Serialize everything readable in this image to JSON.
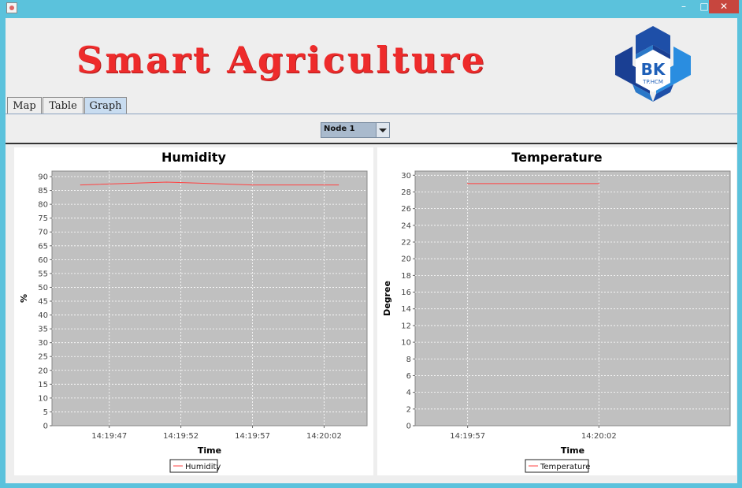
{
  "window": {
    "minimize_glyph": "–",
    "maximize_glyph": "□",
    "close_glyph": "✕"
  },
  "header": {
    "title": "Smart Agriculture",
    "logo_text": "BK",
    "logo_subtext": "TP.HCM"
  },
  "tabs": [
    {
      "label": "Map",
      "active": false
    },
    {
      "label": "Table",
      "active": false
    },
    {
      "label": "Graph",
      "active": true
    }
  ],
  "node_select": {
    "value": "Node 1"
  },
  "chart_data": [
    {
      "type": "line",
      "title": "Humidity",
      "xlabel": "Time",
      "ylabel": "%",
      "ylim": [
        0,
        92
      ],
      "yticks": [
        0,
        5,
        10,
        15,
        20,
        25,
        30,
        35,
        40,
        45,
        50,
        55,
        60,
        65,
        70,
        75,
        80,
        85,
        90
      ],
      "x": [
        "14:19:45",
        "14:19:51",
        "14:19:57",
        "14:20:03"
      ],
      "xticks": [
        "14:19:47",
        "14:19:52",
        "14:19:57",
        "14:20:02"
      ],
      "xrange": [
        "14:19:43",
        "14:20:05"
      ],
      "series": [
        {
          "name": "Humidity",
          "values": [
            87,
            88,
            87,
            87
          ],
          "color": "#ff4040"
        }
      ],
      "legend": "bottom",
      "grid": true
    },
    {
      "type": "line",
      "title": "Temperature",
      "xlabel": "Time",
      "ylabel": "Degree",
      "ylim": [
        0,
        30.5
      ],
      "yticks": [
        0,
        2,
        4,
        6,
        8,
        10,
        12,
        14,
        16,
        18,
        20,
        22,
        24,
        26,
        28,
        30
      ],
      "x": [
        "14:19:57",
        "14:20:02"
      ],
      "xticks": [
        "14:19:57",
        "14:20:02"
      ],
      "xrange": [
        "14:19:55",
        "14:20:07"
      ],
      "series": [
        {
          "name": "Temperature",
          "values": [
            29,
            29
          ],
          "color": "#ff4040"
        }
      ],
      "legend": "bottom",
      "grid": true
    }
  ]
}
